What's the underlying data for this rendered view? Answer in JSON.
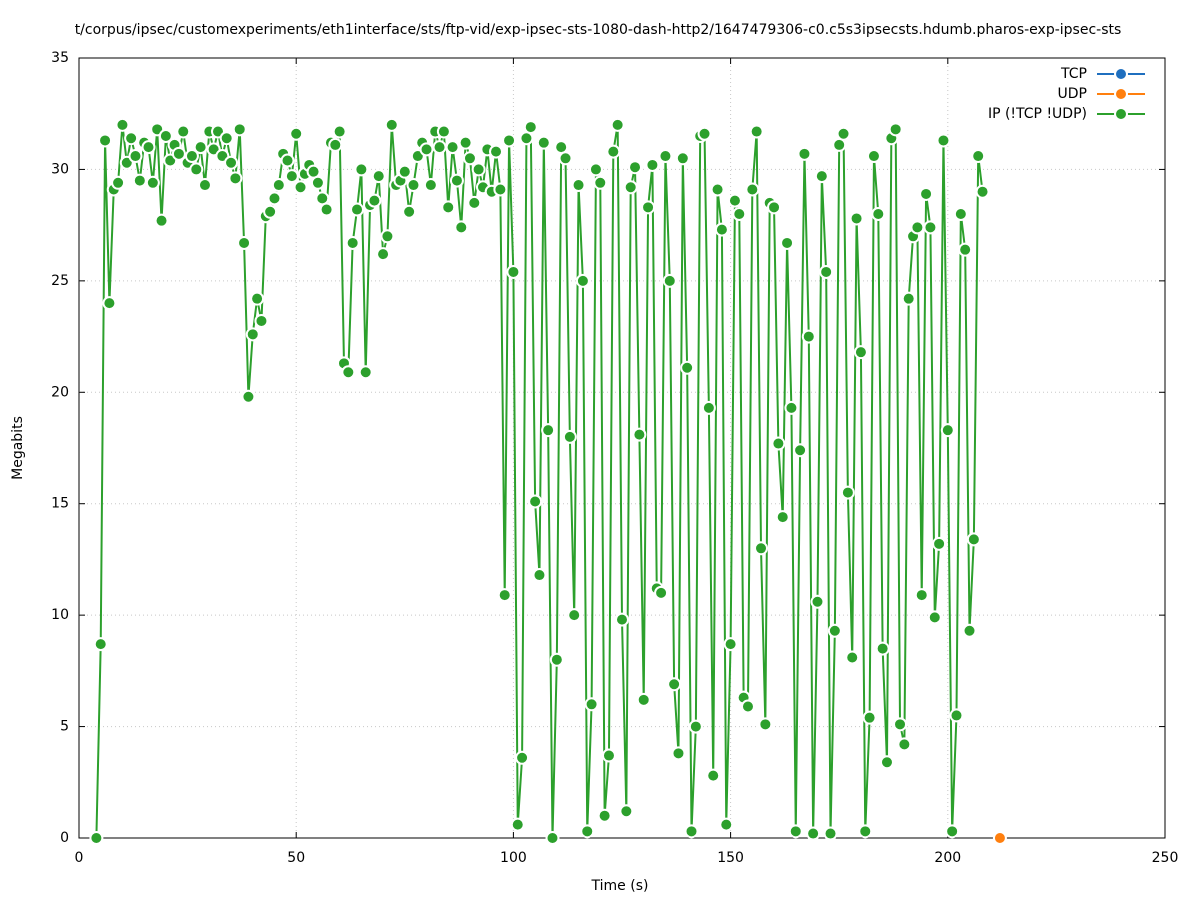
{
  "chart_data": {
    "type": "line",
    "title": "t/corpus/ipsec/customexperiments/eth1interface/sts/ftp-vid/exp-ipsec-sts-1080-dash-http2/1647479306-c0.c5s3ipsecsts.hdumb.pharos-exp-ipsec-sts",
    "x_label": "Time (s)",
    "y_label": "Megabits",
    "xlim": [
      0,
      250
    ],
    "xticks": [
      0,
      50,
      100,
      150,
      200,
      250
    ],
    "ylim": [
      0,
      35
    ],
    "yticks": [
      0,
      5,
      10,
      15,
      20,
      25,
      30,
      35
    ],
    "grid": true,
    "legend": "top-right",
    "series": [
      {
        "name": "TCP",
        "color": "#1f6fbf",
        "x": [],
        "values": []
      },
      {
        "name": "UDP",
        "color": "#ff7f0e",
        "x": [
          212
        ],
        "values": [
          0
        ]
      },
      {
        "name": "IP (!TCP  !UDP)",
        "color": "#2ca02c",
        "x": [
          4,
          5,
          6,
          7,
          8,
          9,
          10,
          11,
          12,
          13,
          14,
          15,
          16,
          17,
          18,
          19,
          20,
          21,
          22,
          23,
          24,
          25,
          26,
          27,
          28,
          29,
          30,
          31,
          32,
          33,
          34,
          35,
          36,
          37,
          38,
          39,
          40,
          41,
          42,
          43,
          44,
          45,
          46,
          47,
          48,
          49,
          50,
          51,
          52,
          53,
          54,
          55,
          56,
          57,
          58,
          59,
          60,
          61,
          62,
          63,
          64,
          65,
          66,
          67,
          68,
          69,
          70,
          71,
          72,
          73,
          74,
          75,
          76,
          77,
          78,
          79,
          80,
          81,
          82,
          83,
          84,
          85,
          86,
          87,
          88,
          89,
          90,
          91,
          92,
          93,
          94,
          95,
          96,
          97,
          98,
          99,
          100,
          101,
          102,
          103,
          104,
          105,
          106,
          107,
          108,
          109,
          110,
          111,
          112,
          113,
          114,
          115,
          116,
          117,
          118,
          119,
          120,
          121,
          122,
          123,
          124,
          125,
          126,
          127,
          128,
          129,
          130,
          131,
          132,
          133,
          134,
          135,
          136,
          137,
          138,
          139,
          140,
          141,
          142,
          143,
          144,
          145,
          146,
          147,
          148,
          149,
          150,
          151,
          152,
          153,
          154,
          155,
          156,
          157,
          158,
          159,
          160,
          161,
          162,
          163,
          164,
          165,
          166,
          167,
          168,
          169,
          170,
          171,
          172,
          173,
          174,
          175,
          176,
          177,
          178,
          179,
          180,
          181,
          182,
          183,
          184,
          185,
          186,
          187,
          188,
          189,
          190,
          191,
          192,
          193,
          194,
          195,
          196,
          197,
          198,
          199,
          200,
          201,
          202,
          203,
          204,
          205,
          206,
          207,
          208
        ],
        "values": [
          0,
          8.7,
          31.3,
          24.0,
          29.1,
          29.4,
          32.0,
          30.3,
          31.4,
          30.6,
          29.5,
          31.2,
          31.0,
          29.4,
          31.8,
          27.7,
          31.5,
          30.4,
          31.1,
          30.7,
          31.7,
          30.3,
          30.6,
          30.0,
          31.0,
          29.3,
          31.7,
          30.9,
          31.7,
          30.6,
          31.4,
          30.3,
          29.6,
          31.8,
          26.7,
          19.8,
          22.6,
          24.2,
          23.2,
          27.9,
          28.1,
          28.7,
          29.3,
          30.7,
          30.4,
          29.7,
          31.6,
          29.2,
          29.8,
          30.2,
          29.9,
          29.4,
          28.7,
          28.2,
          31.2,
          31.1,
          31.7,
          21.3,
          20.9,
          26.7,
          28.2,
          30.0,
          20.9,
          28.4,
          28.6,
          29.7,
          26.2,
          27.0,
          32.0,
          29.3,
          29.5,
          29.9,
          28.1,
          29.3,
          30.6,
          31.2,
          30.9,
          29.3,
          31.7,
          31.0,
          31.7,
          28.3,
          31.0,
          29.5,
          27.4,
          31.2,
          30.5,
          28.5,
          30.0,
          29.2,
          30.9,
          29.0,
          30.8,
          29.1,
          10.9,
          31.3,
          25.4,
          0.6,
          3.6,
          31.4,
          31.9,
          15.1,
          11.8,
          31.2,
          18.3,
          0,
          8.0,
          31.0,
          30.5,
          18.0,
          10.0,
          29.3,
          25.0,
          0.3,
          6.0,
          30.0,
          29.4,
          1.0,
          3.7,
          30.8,
          32.0,
          9.8,
          1.2,
          29.2,
          30.1,
          18.1,
          6.2,
          28.3,
          30.2,
          11.2,
          11.0,
          30.6,
          25.0,
          6.9,
          3.8,
          30.5,
          21.1,
          0.3,
          5.0,
          31.5,
          31.6,
          19.3,
          2.8,
          29.1,
          27.3,
          0.6,
          8.7,
          28.6,
          28.0,
          6.3,
          5.9,
          29.1,
          31.7,
          13.0,
          5.1,
          28.5,
          28.3,
          17.7,
          14.4,
          26.7,
          19.3,
          0.3,
          17.4,
          30.7,
          22.5,
          0.2,
          10.6,
          29.7,
          25.4,
          0.2,
          9.3,
          31.1,
          31.6,
          15.5,
          8.1,
          27.8,
          21.8,
          0.3,
          5.4,
          30.6,
          28.0,
          8.5,
          3.4,
          31.4,
          31.8,
          5.1,
          4.2,
          24.2,
          27.0,
          27.4,
          10.9,
          28.9,
          27.4,
          9.9,
          13.2,
          31.3,
          18.3,
          0.3,
          5.5,
          28.0,
          26.4,
          9.3,
          13.4,
          30.6,
          29.0
        ]
      }
    ]
  }
}
